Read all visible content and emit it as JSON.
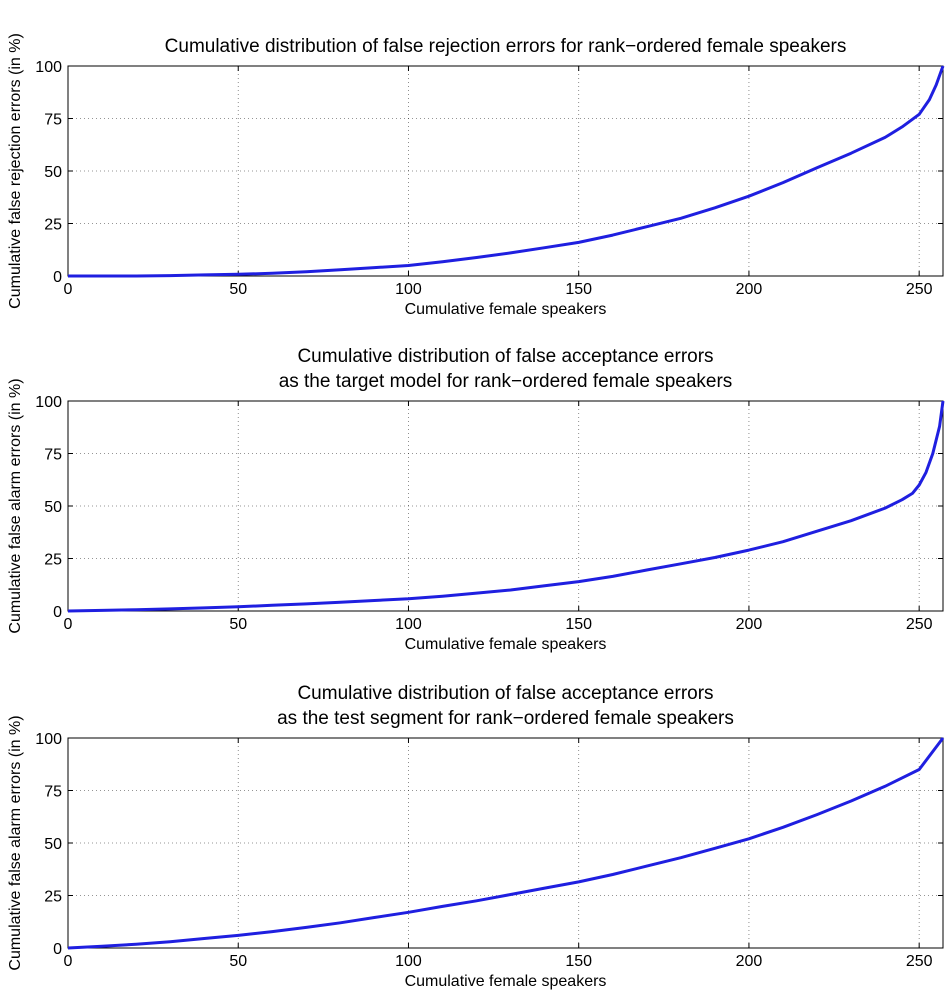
{
  "chart_data": [
    {
      "type": "line",
      "title": [
        "Cumulative distribution of false rejection errors for rank−ordered female speakers"
      ],
      "xlabel": "Cumulative female speakers",
      "ylabel": "Cumulative false rejection errors (in %)",
      "xlim": [
        0,
        257
      ],
      "ylim": [
        0,
        100
      ],
      "xticks": [
        "0",
        "50",
        "100",
        "150",
        "200",
        "250"
      ],
      "yticks": [
        "0",
        "25",
        "50",
        "75",
        "100"
      ],
      "grid": true,
      "color": "#1f1fe0",
      "x": [
        0,
        10,
        20,
        30,
        40,
        50,
        60,
        70,
        80,
        90,
        100,
        110,
        120,
        130,
        140,
        150,
        160,
        170,
        180,
        190,
        200,
        210,
        220,
        230,
        240,
        245,
        250,
        253,
        255,
        257
      ],
      "y": [
        0,
        0,
        0,
        0.2,
        0.5,
        0.8,
        1.3,
        2,
        3,
        4,
        5,
        6.8,
        8.8,
        11,
        13.5,
        16,
        19.5,
        23.5,
        27.5,
        32.5,
        38,
        44.5,
        51.5,
        58.5,
        66,
        71,
        77,
        84,
        91,
        100
      ]
    },
    {
      "type": "line",
      "title": [
        "Cumulative distribution of false acceptance errors",
        "as the target model for rank−ordered female speakers"
      ],
      "xlabel": "Cumulative female speakers",
      "ylabel": "Cumulative false alarm errors (in %)",
      "xlim": [
        0,
        257
      ],
      "ylim": [
        0,
        100
      ],
      "xticks": [
        "0",
        "50",
        "100",
        "150",
        "200",
        "250"
      ],
      "yticks": [
        "0",
        "25",
        "50",
        "75",
        "100"
      ],
      "grid": true,
      "color": "#1f1fe0",
      "x": [
        0,
        10,
        20,
        30,
        40,
        50,
        60,
        70,
        80,
        90,
        100,
        110,
        120,
        130,
        140,
        150,
        160,
        170,
        180,
        190,
        200,
        210,
        220,
        230,
        240,
        245,
        248,
        250,
        252,
        254,
        256,
        257
      ],
      "y": [
        0,
        0.3,
        0.6,
        1,
        1.5,
        2,
        2.7,
        3.4,
        4.2,
        5,
        5.8,
        7,
        8.5,
        10,
        12,
        14,
        16.5,
        19.5,
        22.5,
        25.5,
        29,
        33,
        38,
        43,
        49,
        53,
        56,
        60,
        66,
        75,
        88,
        100
      ]
    },
    {
      "type": "line",
      "title": [
        "Cumulative distribution of false acceptance errors",
        "as the test segment for rank−ordered female speakers"
      ],
      "xlabel": "Cumulative female speakers",
      "ylabel": "Cumulative false alarm errors (in %)",
      "xlim": [
        0,
        257
      ],
      "ylim": [
        0,
        100
      ],
      "xticks": [
        "0",
        "50",
        "100",
        "150",
        "200",
        "250"
      ],
      "yticks": [
        "0",
        "25",
        "50",
        "75",
        "100"
      ],
      "grid": true,
      "color": "#1f1fe0",
      "x": [
        0,
        10,
        20,
        30,
        40,
        50,
        60,
        70,
        80,
        90,
        100,
        110,
        120,
        130,
        140,
        150,
        160,
        170,
        180,
        190,
        200,
        210,
        220,
        230,
        240,
        250,
        257
      ],
      "y": [
        0,
        0.8,
        1.8,
        3,
        4.5,
        6,
        7.8,
        9.8,
        12,
        14.5,
        17,
        19.8,
        22.5,
        25.5,
        28.5,
        31.5,
        35,
        39,
        43,
        47.5,
        52,
        57.5,
        63.5,
        70,
        77,
        85,
        100
      ]
    }
  ]
}
